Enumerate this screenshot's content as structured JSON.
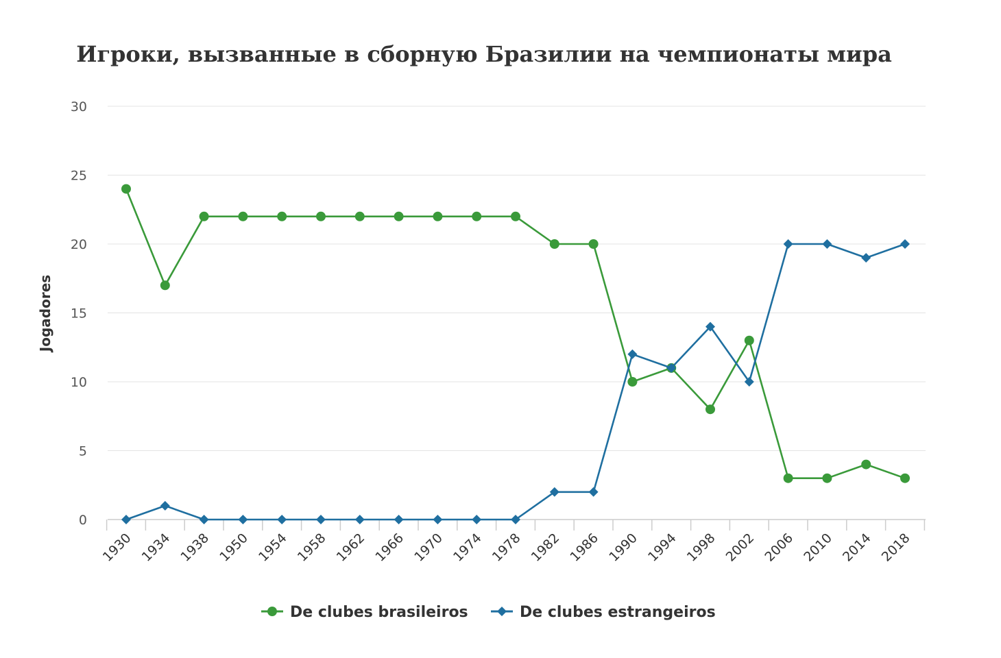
{
  "chart_data": {
    "type": "line",
    "title": "Игроки, вызванные в сборную Бразилии на чемпионаты мира",
    "xlabel": "",
    "ylabel": "Jogadores",
    "ylim": [
      0,
      30
    ],
    "yticks": [
      0,
      5,
      10,
      15,
      20,
      25,
      30
    ],
    "grid": true,
    "legend_position": "bottom",
    "categories": [
      "1930",
      "1934",
      "1938",
      "1950",
      "1954",
      "1958",
      "1962",
      "1966",
      "1970",
      "1974",
      "1978",
      "1982",
      "1986",
      "1990",
      "1994",
      "1998",
      "2002",
      "2006",
      "2010",
      "2014",
      "2018"
    ],
    "series": [
      {
        "name": "De clubes brasileiros",
        "color": "#3a9a3a",
        "marker": "circle",
        "values": [
          24,
          17,
          22,
          22,
          22,
          22,
          22,
          22,
          22,
          22,
          22,
          20,
          20,
          10,
          11,
          8,
          13,
          3,
          3,
          4,
          3
        ]
      },
      {
        "name": "De clubes estrangeiros",
        "color": "#1f6fa0",
        "marker": "diamond",
        "values": [
          0,
          1,
          0,
          0,
          0,
          0,
          0,
          0,
          0,
          0,
          0,
          2,
          2,
          12,
          11,
          14,
          10,
          20,
          20,
          19,
          20
        ]
      }
    ]
  }
}
